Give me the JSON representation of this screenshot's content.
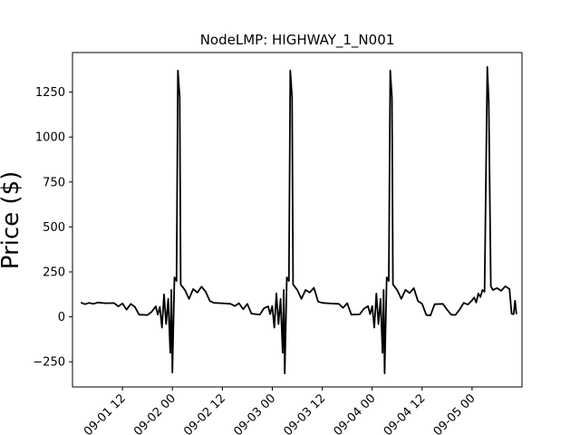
{
  "chart_data": {
    "type": "line",
    "title": "NodeLMP: HIGHWAY_1_N001",
    "xlabel": "",
    "ylabel": "Price ($)",
    "grid": false,
    "legend": "none",
    "x_unit": "datetime",
    "xlim": [
      "2024-09-01 00:00",
      "2024-09-05 12:00"
    ],
    "ylim": [
      -390,
      1470
    ],
    "x_ticks": [
      {
        "t": "2024-09-01 12:00",
        "label": "09-01 12"
      },
      {
        "t": "2024-09-02 00:00",
        "label": "09-02 00"
      },
      {
        "t": "2024-09-02 12:00",
        "label": "09-02 12"
      },
      {
        "t": "2024-09-03 00:00",
        "label": "09-03 00"
      },
      {
        "t": "2024-09-03 12:00",
        "label": "09-03 12"
      },
      {
        "t": "2024-09-04 00:00",
        "label": "09-04 00"
      },
      {
        "t": "2024-09-04 12:00",
        "label": "09-04 12"
      },
      {
        "t": "2024-09-05 00:00",
        "label": "09-05 00"
      }
    ],
    "y_ticks": [
      {
        "v": -250,
        "label": "−250"
      },
      {
        "v": 0,
        "label": "0"
      },
      {
        "v": 250,
        "label": "250"
      },
      {
        "v": 500,
        "label": "500"
      },
      {
        "v": 750,
        "label": "750"
      },
      {
        "v": 1000,
        "label": "1000"
      },
      {
        "v": 1250,
        "label": "1250"
      }
    ],
    "series": [
      {
        "color": "#000000",
        "points": [
          [
            "2024-09-01 02:00",
            80
          ],
          [
            "2024-09-01 03:00",
            70
          ],
          [
            "2024-09-01 04:00",
            78
          ],
          [
            "2024-09-01 05:00",
            72
          ],
          [
            "2024-09-01 06:00",
            80
          ],
          [
            "2024-09-01 08:00",
            76
          ],
          [
            "2024-09-01 10:00",
            77
          ],
          [
            "2024-09-01 11:00",
            58
          ],
          [
            "2024-09-01 12:00",
            75
          ],
          [
            "2024-09-01 13:00",
            40
          ],
          [
            "2024-09-01 14:00",
            72
          ],
          [
            "2024-09-01 15:00",
            55
          ],
          [
            "2024-09-01 16:00",
            12
          ],
          [
            "2024-09-01 18:00",
            10
          ],
          [
            "2024-09-01 19:00",
            28
          ],
          [
            "2024-09-01 20:00",
            58
          ],
          [
            "2024-09-01 20:30",
            12
          ],
          [
            "2024-09-01 21:00",
            55
          ],
          [
            "2024-09-01 21:30",
            -60
          ],
          [
            "2024-09-01 22:00",
            125
          ],
          [
            "2024-09-01 22:30",
            -40
          ],
          [
            "2024-09-01 23:00",
            100
          ],
          [
            "2024-09-01 23:30",
            -200
          ],
          [
            "2024-09-01 23:45",
            150
          ],
          [
            "2024-09-02 00:00",
            -310
          ],
          [
            "2024-09-02 00:30",
            220
          ],
          [
            "2024-09-02 01:00",
            200
          ],
          [
            "2024-09-02 01:20",
            1370
          ],
          [
            "2024-09-02 01:45",
            1220
          ],
          [
            "2024-09-02 02:00",
            180
          ],
          [
            "2024-09-02 03:00",
            150
          ],
          [
            "2024-09-02 04:00",
            100
          ],
          [
            "2024-09-02 05:00",
            155
          ],
          [
            "2024-09-02 06:00",
            135
          ],
          [
            "2024-09-02 07:00",
            168
          ],
          [
            "2024-09-02 08:00",
            140
          ],
          [
            "2024-09-02 09:00",
            88
          ],
          [
            "2024-09-02 10:00",
            78
          ],
          [
            "2024-09-02 12:00",
            76
          ],
          [
            "2024-09-02 14:00",
            72
          ],
          [
            "2024-09-02 15:00",
            60
          ],
          [
            "2024-09-02 16:00",
            76
          ],
          [
            "2024-09-02 17:00",
            42
          ],
          [
            "2024-09-02 18:00",
            72
          ],
          [
            "2024-09-02 19:00",
            18
          ],
          [
            "2024-09-02 21:00",
            12
          ],
          [
            "2024-09-02 22:00",
            48
          ],
          [
            "2024-09-02 23:00",
            58
          ],
          [
            "2024-09-02 23:30",
            15
          ],
          [
            "2024-09-03 00:00",
            60
          ],
          [
            "2024-09-03 00:30",
            -60
          ],
          [
            "2024-09-03 01:00",
            130
          ],
          [
            "2024-09-03 01:30",
            -40
          ],
          [
            "2024-09-03 02:00",
            100
          ],
          [
            "2024-09-03 02:30",
            -200
          ],
          [
            "2024-09-03 02:45",
            150
          ],
          [
            "2024-09-03 03:00",
            -315
          ],
          [
            "2024-09-03 03:30",
            220
          ],
          [
            "2024-09-03 04:00",
            200
          ],
          [
            "2024-09-03 04:20",
            1370
          ],
          [
            "2024-09-03 04:45",
            1220
          ],
          [
            "2024-09-03 05:00",
            180
          ],
          [
            "2024-09-03 06:00",
            150
          ],
          [
            "2024-09-03 07:00",
            100
          ],
          [
            "2024-09-03 08:00",
            150
          ],
          [
            "2024-09-03 09:00",
            135
          ],
          [
            "2024-09-03 10:00",
            162
          ],
          [
            "2024-09-03 11:00",
            85
          ],
          [
            "2024-09-03 12:00",
            78
          ],
          [
            "2024-09-03 14:00",
            74
          ],
          [
            "2024-09-03 16:00",
            72
          ],
          [
            "2024-09-03 17:00",
            50
          ],
          [
            "2024-09-03 18:00",
            76
          ],
          [
            "2024-09-03 19:00",
            12
          ],
          [
            "2024-09-03 21:00",
            14
          ],
          [
            "2024-09-03 22:00",
            45
          ],
          [
            "2024-09-03 23:00",
            60
          ],
          [
            "2024-09-03 23:30",
            15
          ],
          [
            "2024-09-04 00:00",
            60
          ],
          [
            "2024-09-04 00:30",
            -60
          ],
          [
            "2024-09-04 01:00",
            130
          ],
          [
            "2024-09-04 01:30",
            -40
          ],
          [
            "2024-09-04 02:00",
            100
          ],
          [
            "2024-09-04 02:30",
            -200
          ],
          [
            "2024-09-04 02:45",
            150
          ],
          [
            "2024-09-04 03:00",
            -315
          ],
          [
            "2024-09-04 03:30",
            220
          ],
          [
            "2024-09-04 04:00",
            200
          ],
          [
            "2024-09-04 04:20",
            1370
          ],
          [
            "2024-09-04 04:45",
            1220
          ],
          [
            "2024-09-04 05:00",
            180
          ],
          [
            "2024-09-04 06:00",
            150
          ],
          [
            "2024-09-04 07:00",
            100
          ],
          [
            "2024-09-04 08:00",
            150
          ],
          [
            "2024-09-04 09:00",
            132
          ],
          [
            "2024-09-04 10:00",
            160
          ],
          [
            "2024-09-04 11:00",
            88
          ],
          [
            "2024-09-04 12:00",
            72
          ],
          [
            "2024-09-04 13:00",
            10
          ],
          [
            "2024-09-04 14:00",
            8
          ],
          [
            "2024-09-04 15:00",
            70
          ],
          [
            "2024-09-04 17:00",
            72
          ],
          [
            "2024-09-04 18:00",
            40
          ],
          [
            "2024-09-04 19:00",
            12
          ],
          [
            "2024-09-04 20:00",
            10
          ],
          [
            "2024-09-04 21:00",
            40
          ],
          [
            "2024-09-04 22:00",
            78
          ],
          [
            "2024-09-04 23:00",
            68
          ],
          [
            "2024-09-05 00:00",
            92
          ],
          [
            "2024-09-05 00:30",
            108
          ],
          [
            "2024-09-05 01:00",
            80
          ],
          [
            "2024-09-05 01:30",
            130
          ],
          [
            "2024-09-05 02:00",
            110
          ],
          [
            "2024-09-05 02:30",
            150
          ],
          [
            "2024-09-05 03:00",
            140
          ],
          [
            "2024-09-05 03:40",
            1390
          ],
          [
            "2024-09-05 04:00",
            1200
          ],
          [
            "2024-09-05 04:30",
            170
          ],
          [
            "2024-09-05 05:00",
            150
          ],
          [
            "2024-09-05 06:00",
            160
          ],
          [
            "2024-09-05 07:00",
            145
          ],
          [
            "2024-09-05 08:00",
            170
          ],
          [
            "2024-09-05 09:00",
            155
          ],
          [
            "2024-09-05 09:30",
            18
          ],
          [
            "2024-09-05 10:00",
            15
          ],
          [
            "2024-09-05 10:20",
            90
          ],
          [
            "2024-09-05 10:40",
            15
          ]
        ]
      }
    ]
  }
}
